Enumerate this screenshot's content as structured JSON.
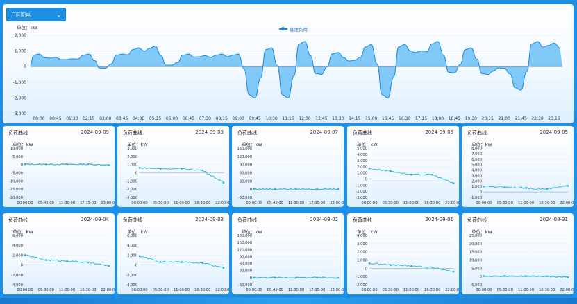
{
  "top": {
    "dropdown": {
      "label": "厂区配电"
    },
    "unit": "单位：kW",
    "legend": "基准负荷",
    "y_ticks": [
      "2,000",
      "1,000",
      "0",
      "-1,000",
      "-2,000",
      "-3,000"
    ],
    "x_ticks": [
      "00:00",
      "00:45",
      "01:30",
      "02:15",
      "03:00",
      "03:45",
      "04:30",
      "05:15",
      "06:00",
      "06:45",
      "07:30",
      "08:15",
      "09:00",
      "09:45",
      "10:30",
      "11:15",
      "12:00",
      "12:45",
      "13:30",
      "14:15",
      "15:00",
      "15:45",
      "16:30",
      "17:15",
      "18:00",
      "18:45",
      "19:30",
      "20:15",
      "21:00",
      "21:45",
      "22:30",
      "23:15"
    ]
  },
  "colors": {
    "accent": "#1a8ae0",
    "fill": "#5bb8f5",
    "line": "#22b5d8",
    "bg": "#1f8fe6"
  },
  "cards": [
    {
      "title": "负荷曲线",
      "date": "2024-09-09",
      "unit": "单位：kW",
      "y_ticks": [
        "10,000",
        "5,000",
        "0",
        "-5,000",
        "-10,000",
        "-15,000",
        "-20,000"
      ],
      "x_ticks": [
        "00:00:00",
        "05:45:00",
        "11:30:00",
        "17:15:00",
        "23:00:00"
      ]
    },
    {
      "title": "负荷曲线",
      "date": "2024-09-08",
      "unit": "单位：kW",
      "y_ticks": [
        "3,000",
        "2,000",
        "1,000",
        "0",
        "-1,000",
        "-2,000",
        "-3,000"
      ],
      "x_ticks": [
        "00:00:00",
        "05:30:00",
        "11:00:00",
        "16:30:00",
        "22:00:00"
      ]
    },
    {
      "title": "负荷曲线",
      "date": "2024-09-07",
      "unit": "单位：kW",
      "y_ticks": [
        "150,000",
        "120,000",
        "90,000",
        "60,000",
        "30,000",
        "0",
        "-30,000"
      ],
      "x_ticks": [
        "00:00:00",
        "05:45:00",
        "11:30:00",
        "17:15:00",
        "23:00:00"
      ]
    },
    {
      "title": "负荷曲线",
      "date": "2024-09-06",
      "unit": "单位：kW",
      "y_ticks": [
        "5,000",
        "4,000",
        "3,000",
        "2,000",
        "1,000",
        "0",
        "-1,000",
        "-2,000",
        "-3,000"
      ],
      "x_ticks": [
        "00:00:00",
        "05:30:00",
        "11:00:00",
        "16:30:00",
        "22:00:00"
      ]
    },
    {
      "title": "负荷曲线",
      "date": "2024-09-05",
      "unit": "单位：kW",
      "y_ticks": [
        "8,000",
        "7,000",
        "6,000",
        "5,000",
        "4,000",
        "3,000",
        "2,000",
        "1,000",
        "0",
        "-1,000"
      ],
      "x_ticks": [
        "00:00:00",
        "05:30:00",
        "11:00:00",
        "16:30:00",
        "22:00:00"
      ]
    },
    {
      "title": "负荷曲线",
      "date": "2024-09-04",
      "unit": "单位：kW",
      "y_ticks": [
        "6,000",
        "4,000",
        "2,000",
        "0",
        "-2,000",
        "-4,000"
      ],
      "x_ticks": [
        "00:00:00",
        "05:30:00",
        "11:00:00",
        "16:30:00",
        "22:00:00"
      ]
    },
    {
      "title": "负荷曲线",
      "date": "2024-09-03",
      "unit": "单位：kW",
      "y_ticks": [
        "6,000",
        "4,000",
        "2,000",
        "0",
        "-2,000",
        "-4,000"
      ],
      "x_ticks": [
        "00:00:00",
        "05:30:00",
        "11:00:00",
        "16:30:00",
        "22:00:00"
      ]
    },
    {
      "title": "负荷曲线",
      "date": "2024-09-02",
      "unit": "单位：kW",
      "y_ticks": [
        "180,000",
        "150,000",
        "120,000",
        "90,000",
        "60,000",
        "30,000",
        "0",
        "-30,000"
      ],
      "x_ticks": [
        "00:00:00",
        "05:45:00",
        "11:30:00",
        "17:15:00",
        "23:00:00"
      ]
    },
    {
      "title": "负荷曲线",
      "date": "2024-09-01",
      "unit": "单位：kW",
      "y_ticks": [
        "4,000",
        "3,000",
        "2,000",
        "1,000",
        "0",
        "-1,000",
        "-2,000"
      ],
      "x_ticks": [
        "00:00:00",
        "05:30:00",
        "11:00:00",
        "16:30:00",
        "22:00:00"
      ]
    },
    {
      "title": "负荷曲线",
      "date": "2024-08-31",
      "unit": "单位：kW",
      "y_ticks": [
        "25,000",
        "20,000",
        "15,000",
        "10,000",
        "5,000",
        "0",
        "-5,000"
      ],
      "x_ticks": [
        "00:00:00",
        "05:30:00",
        "11:00:00",
        "16:30:00",
        "22:00:00"
      ]
    }
  ],
  "chart_data": [
    {
      "type": "area",
      "title": "",
      "legend": [
        "基准负荷"
      ],
      "ylabel": "单位：kW",
      "ylim": [
        -3000,
        2000
      ],
      "x": [
        "00:00",
        "00:45",
        "01:30",
        "02:15",
        "03:00",
        "03:45",
        "04:30",
        "05:15",
        "06:00",
        "06:45",
        "07:30",
        "08:15",
        "09:00",
        "09:45",
        "10:30",
        "11:15",
        "12:00",
        "12:45",
        "13:30",
        "14:15",
        "15:00",
        "15:45",
        "16:30",
        "17:15",
        "18:00",
        "18:45",
        "19:30",
        "20:15",
        "21:00",
        "21:45",
        "22:30",
        "23:15"
      ],
      "series": [
        {
          "name": "基准负荷",
          "values": [
            800,
            600,
            500,
            800,
            -100,
            800,
            1200,
            1300,
            100,
            800,
            700,
            800,
            800,
            -2000,
            1200,
            -2000,
            1600,
            -500,
            900,
            400,
            1400,
            -2000,
            1400,
            1000,
            1600,
            -400,
            1200,
            -500,
            -100,
            -1500,
            1600,
            1500
          ]
        }
      ]
    },
    {
      "type": "line",
      "title": "2024-09-09",
      "ylim": [
        -20000,
        10000
      ],
      "x": [
        "00:00:00",
        "05:45:00",
        "11:30:00",
        "17:15:00",
        "23:00:00"
      ],
      "series": [
        {
          "name": "负荷",
          "values": [
            300,
            200,
            200,
            200,
            -300
          ]
        }
      ]
    },
    {
      "type": "line",
      "title": "2024-09-08",
      "ylim": [
        -3000,
        3000
      ],
      "x": [
        "00:00:00",
        "05:30:00",
        "11:00:00",
        "16:30:00",
        "22:00:00"
      ],
      "series": [
        {
          "name": "负荷",
          "values": [
            600,
            500,
            500,
            300,
            -1200
          ]
        }
      ]
    },
    {
      "type": "line",
      "title": "2024-09-07",
      "ylim": [
        -30000,
        150000
      ],
      "x": [
        "00:00:00",
        "05:45:00",
        "11:30:00",
        "17:15:00",
        "23:00:00"
      ],
      "series": [
        {
          "name": "负荷",
          "values": [
            500,
            500,
            400,
            400,
            200
          ]
        }
      ]
    },
    {
      "type": "line",
      "title": "2024-09-06",
      "ylim": [
        -3000,
        5000
      ],
      "x": [
        "00:00:00",
        "05:30:00",
        "11:00:00",
        "16:30:00",
        "22:00:00"
      ],
      "series": [
        {
          "name": "负荷",
          "values": [
            1700,
            1300,
            700,
            700,
            -700
          ]
        }
      ]
    },
    {
      "type": "line",
      "title": "2024-09-05",
      "ylim": [
        -1000,
        8000
      ],
      "x": [
        "00:00:00",
        "05:30:00",
        "11:00:00",
        "16:30:00",
        "22:00:00"
      ],
      "series": [
        {
          "name": "负荷",
          "values": [
            1000,
            900,
            700,
            500,
            1100
          ]
        }
      ]
    },
    {
      "type": "line",
      "title": "2024-09-04",
      "ylim": [
        -4000,
        6000
      ],
      "x": [
        "00:00:00",
        "05:30:00",
        "11:00:00",
        "16:30:00",
        "22:00:00"
      ],
      "series": [
        {
          "name": "负荷",
          "values": [
            2000,
            1000,
            800,
            500,
            -200
          ]
        }
      ]
    },
    {
      "type": "line",
      "title": "2024-09-03",
      "ylim": [
        -4000,
        6000
      ],
      "x": [
        "00:00:00",
        "05:30:00",
        "11:00:00",
        "16:30:00",
        "22:00:00"
      ],
      "series": [
        {
          "name": "负荷",
          "values": [
            1800,
            600,
            600,
            400,
            -600
          ]
        }
      ]
    },
    {
      "type": "line",
      "title": "2024-09-02",
      "ylim": [
        -30000,
        180000
      ],
      "x": [
        "00:00:00",
        "05:45:00",
        "11:30:00",
        "17:15:00",
        "23:00:00"
      ],
      "series": [
        {
          "name": "负荷",
          "values": [
            200,
            200,
            100,
            100,
            -500
          ]
        }
      ]
    },
    {
      "type": "line",
      "title": "2024-09-01",
      "ylim": [
        -2000,
        4000
      ],
      "x": [
        "00:00:00",
        "05:30:00",
        "11:00:00",
        "16:30:00",
        "22:00:00"
      ],
      "series": [
        {
          "name": "负荷",
          "values": [
            600,
            400,
            300,
            100,
            -400
          ]
        }
      ]
    },
    {
      "type": "line",
      "title": "2024-08-31",
      "ylim": [
        -5000,
        25000
      ],
      "x": [
        "00:00:00",
        "05:30:00",
        "11:00:00",
        "16:30:00",
        "22:00:00"
      ],
      "series": [
        {
          "name": "负荷",
          "values": [
            300,
            300,
            200,
            100,
            -500
          ]
        }
      ]
    }
  ]
}
